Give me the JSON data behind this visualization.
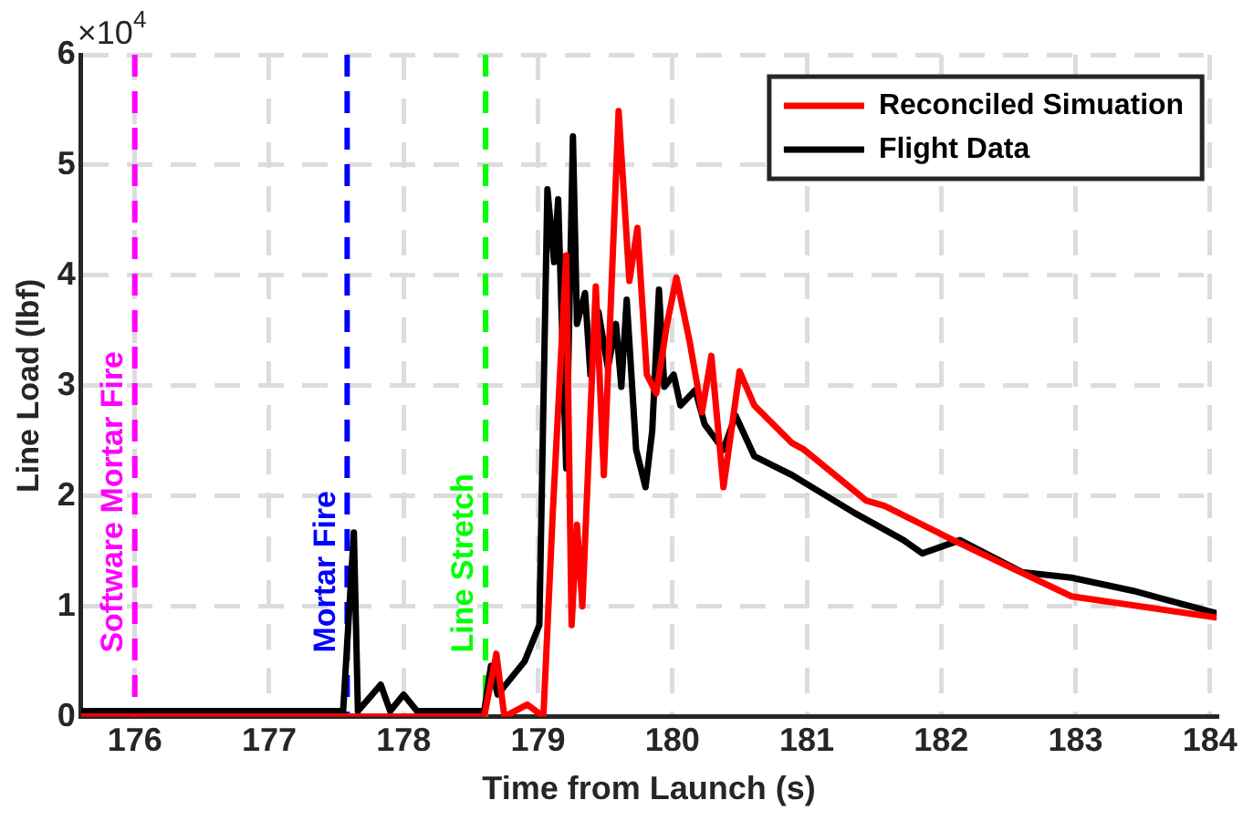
{
  "chart_data": {
    "type": "line",
    "xlabel": "Time from Launch (s)",
    "ylabel": "Line Load (lbf)",
    "xlim": [
      175.6,
      184.05
    ],
    "xticks": [
      176,
      177,
      178,
      179,
      180,
      181,
      182,
      183,
      184
    ],
    "ylim": [
      0,
      6
    ],
    "yticks": [
      0,
      1,
      2,
      3,
      4,
      5,
      6
    ],
    "annotations": [
      "×10$^{4}$"
    ],
    "grid": true,
    "legend": "top right",
    "marker": "none",
    "line_style": "solid",
    "ref_lines": [
      {
        "axis": "x",
        "value": 176.0,
        "label": "Software Mortar Fire",
        "color": "#ff00ff",
        "line_style": "dashed"
      },
      {
        "axis": "x",
        "value": 177.58,
        "label": "Mortar Fire",
        "color": "#0000ff",
        "line_style": "dashed"
      },
      {
        "axis": "x",
        "value": 178.61,
        "label": "Line Stretch",
        "color": "#00ff00",
        "line_style": "dashed"
      }
    ],
    "series": [
      {
        "name": "Reconciled Simuation",
        "color": "#ff0000",
        "x": [
          175.6,
          178.6,
          178.69,
          178.75,
          178.92,
          179.04,
          179.11,
          179.21,
          179.25,
          179.29,
          179.33,
          179.43,
          179.49,
          179.6,
          179.68,
          179.74,
          179.81,
          179.88,
          179.96,
          180.03,
          180.13,
          180.22,
          180.29,
          180.38,
          180.5,
          180.61,
          180.89,
          180.98,
          181.44,
          181.58,
          182.09,
          182.97,
          184.04
        ],
        "values": [
          0,
          0,
          0.57,
          0,
          0.11,
          0,
          1.85,
          4.18,
          0.83,
          1.74,
          1.0,
          3.9,
          2.19,
          5.49,
          3.95,
          4.43,
          3.1,
          2.93,
          3.56,
          3.98,
          3.39,
          2.76,
          3.27,
          2.08,
          3.13,
          2.82,
          2.48,
          2.42,
          1.96,
          1.91,
          1.6,
          1.09,
          0.9
        ]
      },
      {
        "name": "Flight Data",
        "color": "#000000",
        "x": [
          175.6,
          177.55,
          177.63,
          177.66,
          177.83,
          177.9,
          178.0,
          178.1,
          178.6,
          178.65,
          178.7,
          178.9,
          179.01,
          179.07,
          179.12,
          179.15,
          179.21,
          179.26,
          179.29,
          179.35,
          179.39,
          179.45,
          179.52,
          179.58,
          179.62,
          179.66,
          179.73,
          179.8,
          179.85,
          179.9,
          179.94,
          180.01,
          180.06,
          180.17,
          180.24,
          180.38,
          180.47,
          180.61,
          180.89,
          181.35,
          181.72,
          181.86,
          182.14,
          182.6,
          182.97,
          183.43,
          184.04
        ],
        "values": [
          0.05,
          0.05,
          1.67,
          0.05,
          0.29,
          0.05,
          0.2,
          0.05,
          0.05,
          0.46,
          0.2,
          0.5,
          0.83,
          4.78,
          4.12,
          4.69,
          2.25,
          5.26,
          3.56,
          3.84,
          3.1,
          3.67,
          3.16,
          3.56,
          2.99,
          3.78,
          2.42,
          2.08,
          2.59,
          3.87,
          2.99,
          3.1,
          2.82,
          2.96,
          2.65,
          2.42,
          2.73,
          2.36,
          2.19,
          1.85,
          1.6,
          1.48,
          1.6,
          1.31,
          1.26,
          1.14,
          0.94
        ]
      }
    ]
  }
}
